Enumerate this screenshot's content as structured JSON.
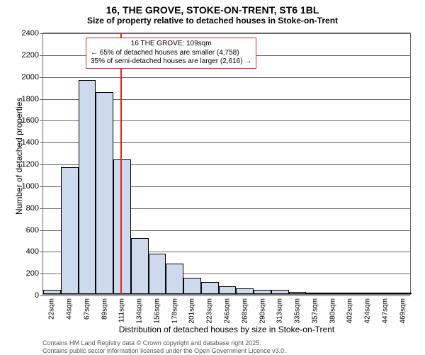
{
  "title": "16, THE GROVE, STOKE-ON-TRENT, ST6 1BL",
  "subtitle": "Size of property relative to detached houses in Stoke-on-Trent",
  "y_axis_title": "Number of detached properties",
  "x_axis_title": "Distribution of detached houses by size in Stoke-on-Trent",
  "footer_line1": "Contains HM Land Registry data © Crown copyright and database right 2025.",
  "footer_line2": "Contains public sector information licensed under the Open Government Licence v3.0.",
  "chart": {
    "type": "histogram",
    "background_color": "#ffffff",
    "bar_fill": "#cdd9ec",
    "bar_stroke": "#000000",
    "grid_color": "#666666",
    "marker_color": "#d62728",
    "annotation_border": "#d62728",
    "ylim": [
      0,
      2400
    ],
    "ytick_step": 200,
    "title_fontsize": 14,
    "subtitle_fontsize": 12,
    "axis_label_fontsize": 12,
    "tick_fontsize": 11,
    "xtick_fontsize": 10,
    "x_labels": [
      "22sqm",
      "44sqm",
      "67sqm",
      "89sqm",
      "111sqm",
      "134sqm",
      "156sqm",
      "178sqm",
      "201sqm",
      "223sqm",
      "246sqm",
      "268sqm",
      "290sqm",
      "313sqm",
      "335sqm",
      "357sqm",
      "380sqm",
      "402sqm",
      "424sqm",
      "447sqm",
      "469sqm"
    ],
    "values": [
      40,
      1160,
      1960,
      1850,
      1230,
      510,
      370,
      280,
      150,
      110,
      70,
      50,
      40,
      40,
      20,
      10,
      5,
      5,
      5,
      5,
      5
    ],
    "marker_value_sqm": 109,
    "x_domain": [
      11,
      480
    ],
    "annotation": {
      "title": "16 THE GROVE: 109sqm",
      "line1": "← 65% of detached houses are smaller (4,758)",
      "line2": "35% of semi-detached houses are larger (2,616) →"
    }
  }
}
